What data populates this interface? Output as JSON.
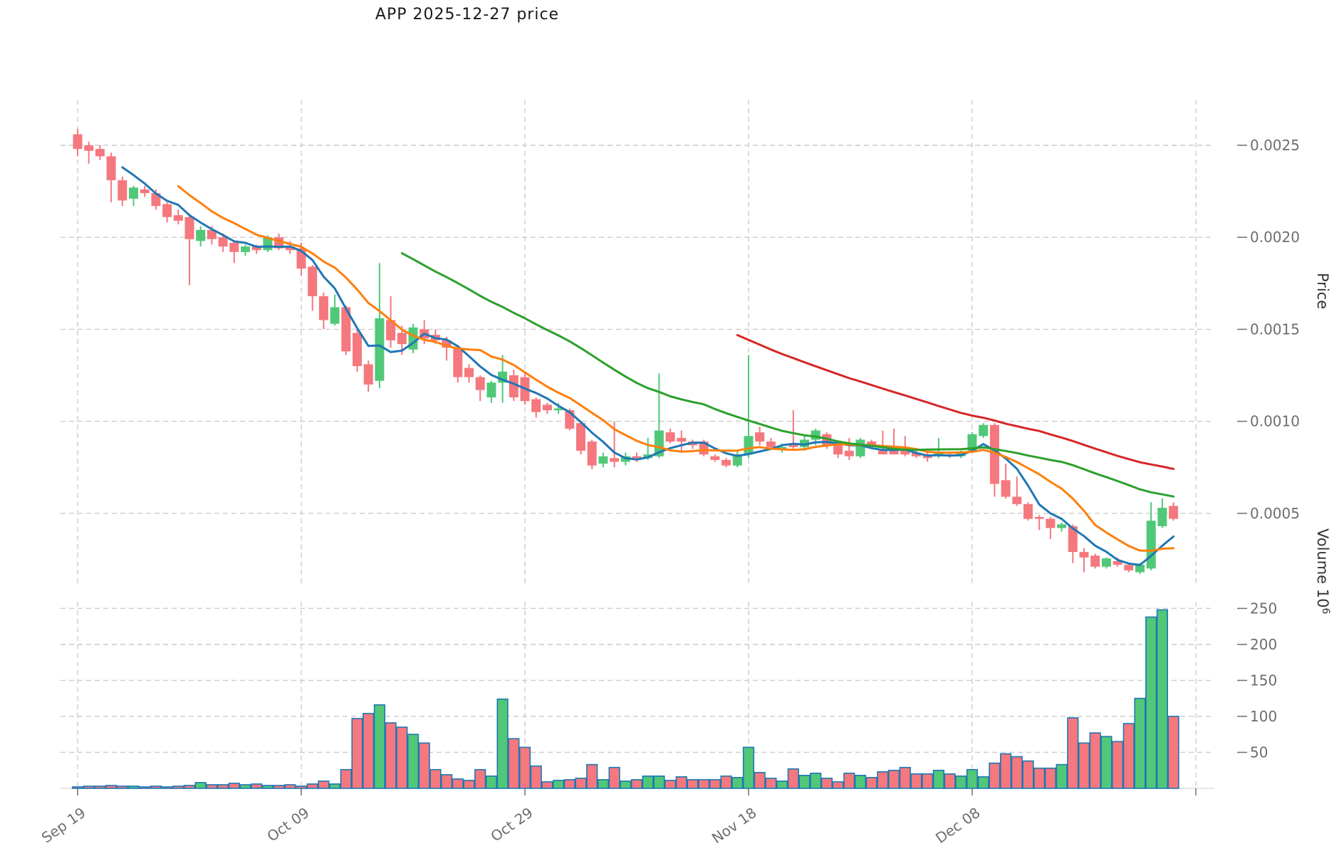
{
  "title": "APP  2025-12-27  price",
  "chart_data": {
    "type": "candlestick",
    "title": "APP  2025-12-27  price",
    "legend_position": "none",
    "grid": true,
    "x_axis": {
      "tick_labels": [
        "Sep 19",
        "Oct 09",
        "Oct 29",
        "Nov 18",
        "Dec 08"
      ],
      "tick_indices": [
        0,
        20,
        40,
        60,
        80
      ],
      "unlabeled_gridline_index": 100
    },
    "price_axis": {
      "label": "Price",
      "ticks": [
        0.0005,
        0.001,
        0.0015,
        0.002,
        0.0025
      ],
      "ylim": [
        0.00012,
        0.00278
      ]
    },
    "volume_axis": {
      "label": "Volume",
      "unit_base": "10",
      "unit_exponent": "6",
      "ticks": [
        50,
        100,
        150,
        200,
        250
      ],
      "ylim": [
        0,
        262
      ]
    },
    "moving_averages": {
      "windows": [
        5,
        10,
        30,
        60
      ],
      "colors": [
        "#1f77b4",
        "#ff7f0e",
        "#2ca02c",
        "#d62728"
      ]
    },
    "candles_format": [
      "open",
      "high",
      "low",
      "close",
      "volume_millions"
    ],
    "candles": [
      [
        0.00256,
        0.00259,
        0.00244,
        0.00248,
        2
      ],
      [
        0.0025,
        0.00252,
        0.0024,
        0.00247,
        3
      ],
      [
        0.00248,
        0.0025,
        0.00242,
        0.00244,
        3
      ],
      [
        0.00244,
        0.00246,
        0.00219,
        0.00231,
        4
      ],
      [
        0.00231,
        0.00233,
        0.00217,
        0.0022,
        3
      ],
      [
        0.00221,
        0.00228,
        0.00217,
        0.00227,
        3
      ],
      [
        0.00226,
        0.00228,
        0.00222,
        0.00224,
        2
      ],
      [
        0.00224,
        0.00226,
        0.00215,
        0.00217,
        3
      ],
      [
        0.00218,
        0.00219,
        0.00208,
        0.00211,
        2
      ],
      [
        0.00212,
        0.00215,
        0.00207,
        0.00209,
        3
      ],
      [
        0.00211,
        0.00213,
        0.00174,
        0.00199,
        4
      ],
      [
        0.00198,
        0.00206,
        0.00195,
        0.00204,
        8
      ],
      [
        0.00204,
        0.00206,
        0.00196,
        0.00199,
        5
      ],
      [
        0.002,
        0.00202,
        0.00192,
        0.00195,
        5
      ],
      [
        0.00197,
        0.00198,
        0.00186,
        0.00192,
        7
      ],
      [
        0.00192,
        0.00196,
        0.0019,
        0.00195,
        5
      ],
      [
        0.00195,
        0.00196,
        0.00191,
        0.00193,
        6
      ],
      [
        0.00193,
        0.00201,
        0.00192,
        0.002,
        4
      ],
      [
        0.002,
        0.00202,
        0.00193,
        0.00194,
        4
      ],
      [
        0.00195,
        0.00198,
        0.00191,
        0.00193,
        5
      ],
      [
        0.00194,
        0.00197,
        0.00179,
        0.00183,
        3
      ],
      [
        0.00184,
        0.00185,
        0.0016,
        0.00168,
        6
      ],
      [
        0.00168,
        0.0017,
        0.0015,
        0.00155,
        10
      ],
      [
        0.00153,
        0.00169,
        0.00152,
        0.00162,
        6
      ],
      [
        0.00162,
        0.00163,
        0.00136,
        0.00138,
        26
      ],
      [
        0.00148,
        0.0015,
        0.00127,
        0.0013,
        97
      ],
      [
        0.00131,
        0.00133,
        0.00116,
        0.0012,
        104
      ],
      [
        0.00122,
        0.00186,
        0.00118,
        0.00156,
        116
      ],
      [
        0.00155,
        0.00168,
        0.0014,
        0.00144,
        91
      ],
      [
        0.00148,
        0.00152,
        0.00136,
        0.00142,
        85
      ],
      [
        0.00139,
        0.00153,
        0.00137,
        0.00151,
        75
      ],
      [
        0.0015,
        0.00155,
        0.00142,
        0.00145,
        63
      ],
      [
        0.00147,
        0.0015,
        0.00142,
        0.00144,
        26
      ],
      [
        0.00144,
        0.00146,
        0.00133,
        0.0014,
        19
      ],
      [
        0.0014,
        0.00141,
        0.00121,
        0.00124,
        13
      ],
      [
        0.00129,
        0.00131,
        0.00121,
        0.00124,
        11
      ],
      [
        0.00124,
        0.00125,
        0.00111,
        0.00117,
        26
      ],
      [
        0.00113,
        0.00122,
        0.0011,
        0.00121,
        17
      ],
      [
        0.00121,
        0.00136,
        0.0011,
        0.00127,
        124
      ],
      [
        0.00125,
        0.00128,
        0.00111,
        0.00113,
        69
      ],
      [
        0.00124,
        0.00126,
        0.00109,
        0.00111,
        57
      ],
      [
        0.00112,
        0.00113,
        0.00102,
        0.00105,
        31
      ],
      [
        0.00109,
        0.0011,
        0.00104,
        0.00106,
        9
      ],
      [
        0.00106,
        0.0011,
        0.00104,
        0.00107,
        11
      ],
      [
        0.00106,
        0.00107,
        0.00095,
        0.00096,
        12
      ],
      [
        0.00099,
        0.001,
        0.00082,
        0.00084,
        14
      ],
      [
        0.00089,
        0.0009,
        0.00074,
        0.00076,
        33
      ],
      [
        0.00077,
        0.00083,
        0.00075,
        0.00081,
        12
      ],
      [
        0.0008,
        0.001,
        0.00075,
        0.00078,
        29
      ],
      [
        0.00078,
        0.00083,
        0.00076,
        0.00081,
        10
      ],
      [
        0.00081,
        0.00083,
        0.00078,
        0.0008,
        12
      ],
      [
        0.0008,
        0.00091,
        0.00079,
        0.00082,
        17
      ],
      [
        0.00081,
        0.00126,
        0.0008,
        0.00095,
        17
      ],
      [
        0.00094,
        0.00096,
        0.00088,
        0.00089,
        11
      ],
      [
        0.00091,
        0.00095,
        0.00084,
        0.00089,
        16
      ],
      [
        0.00089,
        0.0009,
        0.00085,
        0.00087,
        12
      ],
      [
        0.00089,
        0.0009,
        0.00081,
        0.00082,
        12
      ],
      [
        0.00081,
        0.00082,
        0.00078,
        0.00079,
        12
      ],
      [
        0.00079,
        0.0008,
        0.00075,
        0.00076,
        17
      ],
      [
        0.00076,
        0.00084,
        0.00075,
        0.00082,
        15
      ],
      [
        0.00082,
        0.00136,
        0.0008,
        0.00092,
        57
      ],
      [
        0.00094,
        0.00097,
        0.00087,
        0.00089,
        22
      ],
      [
        0.00089,
        0.00091,
        0.00085,
        0.00086,
        14
      ],
      [
        0.00085,
        0.00088,
        0.00083,
        0.00086,
        10
      ],
      [
        0.00088,
        0.00106,
        0.00084,
        0.00086,
        27
      ],
      [
        0.00086,
        0.00092,
        0.00084,
        0.0009,
        18
      ],
      [
        0.0009,
        0.00096,
        0.00087,
        0.00095,
        21
      ],
      [
        0.00093,
        0.00094,
        0.00085,
        0.00087,
        14
      ],
      [
        0.00087,
        0.00088,
        0.0008,
        0.00082,
        9
      ],
      [
        0.00084,
        0.00091,
        0.00079,
        0.00081,
        21
      ],
      [
        0.00081,
        0.00091,
        0.0008,
        0.0009,
        18
      ],
      [
        0.00089,
        0.0009,
        0.00086,
        0.00087,
        15
      ],
      [
        0.00084,
        0.00095,
        0.00082,
        0.00082,
        23
      ],
      [
        0.00085,
        0.00096,
        0.00082,
        0.00082,
        25
      ],
      [
        0.00084,
        0.00092,
        0.00081,
        0.00082,
        29
      ],
      [
        0.00083,
        0.00085,
        0.0008,
        0.00081,
        20
      ],
      [
        0.00082,
        0.00083,
        0.00078,
        0.0008,
        20
      ],
      [
        0.00081,
        0.00091,
        0.0008,
        0.00083,
        25
      ],
      [
        0.00082,
        0.00083,
        0.0008,
        0.00081,
        20
      ],
      [
        0.00081,
        0.00084,
        0.0008,
        0.00083,
        17
      ],
      [
        0.00084,
        0.00094,
        0.00083,
        0.00093,
        26
      ],
      [
        0.00092,
        0.00099,
        0.00091,
        0.00098,
        16
      ],
      [
        0.00098,
        0.00099,
        0.00059,
        0.00066,
        35
      ],
      [
        0.00068,
        0.00077,
        0.00058,
        0.00059,
        48
      ],
      [
        0.00059,
        0.0007,
        0.00054,
        0.00055,
        44
      ],
      [
        0.00055,
        0.00056,
        0.00046,
        0.00047,
        38
      ],
      [
        0.00048,
        0.00049,
        0.00041,
        0.00047,
        28
      ],
      [
        0.00047,
        0.00048,
        0.00036,
        0.00042,
        28
      ],
      [
        0.00042,
        0.00045,
        0.0004,
        0.00044,
        33
      ],
      [
        0.00043,
        0.00044,
        0.00023,
        0.00029,
        98
      ],
      [
        0.00029,
        0.00031,
        0.00018,
        0.00026,
        63
      ],
      [
        0.00027,
        0.00028,
        0.0002,
        0.00021,
        77
      ],
      [
        0.00021,
        0.00026,
        0.0002,
        0.000255,
        72
      ],
      [
        0.00024,
        0.00026,
        0.00021,
        0.00022,
        65
      ],
      [
        0.00022,
        0.00023,
        0.00018,
        0.00019,
        90
      ],
      [
        0.00018,
        0.00023,
        0.00017,
        0.00022,
        125
      ],
      [
        0.0002,
        0.00056,
        0.00019,
        0.00046,
        238
      ],
      [
        0.00043,
        0.00058,
        0.00042,
        0.00053,
        248
      ],
      [
        0.00054,
        0.00056,
        0.00046,
        0.00047,
        100
      ]
    ]
  },
  "colors": {
    "up": "#50c878",
    "down": "#f4787e",
    "volume_edge": "#1f77b4",
    "grid": "#cccccc",
    "tick_text": "#6e6e6e",
    "axis_label_text": "#333333",
    "title_text": "#1a1a1a"
  }
}
